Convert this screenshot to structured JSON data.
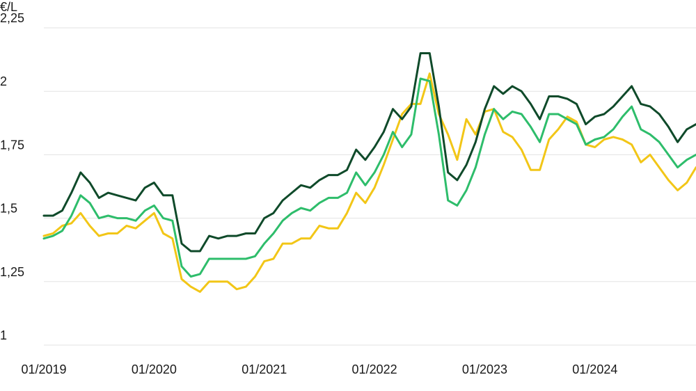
{
  "chart_data": {
    "type": "line",
    "ylabel": "€/L",
    "ylim": [
      1,
      2.25
    ],
    "y_ticks": [
      {
        "value": 2.25,
        "label": "2,25"
      },
      {
        "value": 2,
        "label": "2"
      },
      {
        "value": 1.75,
        "label": "1,75"
      },
      {
        "value": 1.5,
        "label": "1,5"
      },
      {
        "value": 1.25,
        "label": "1,25"
      },
      {
        "value": 1,
        "label": "1"
      }
    ],
    "x_start": "2019-01",
    "xlim_months": [
      0,
      71
    ],
    "x_ticks": [
      {
        "month": 0,
        "label": "01/2019"
      },
      {
        "month": 12,
        "label": "01/2020"
      },
      {
        "month": 24,
        "label": "01/2021"
      },
      {
        "month": 36,
        "label": "01/2022"
      },
      {
        "month": 48,
        "label": "01/2023"
      },
      {
        "month": 60,
        "label": "01/2024"
      }
    ],
    "grid": true,
    "series": [
      {
        "color": "#0f4a2a",
        "values": [
          1.51,
          1.51,
          1.53,
          1.6,
          1.68,
          1.64,
          1.58,
          1.6,
          1.59,
          1.58,
          1.57,
          1.62,
          1.64,
          1.59,
          1.59,
          1.4,
          1.37,
          1.37,
          1.43,
          1.42,
          1.43,
          1.43,
          1.44,
          1.44,
          1.5,
          1.52,
          1.57,
          1.6,
          1.63,
          1.62,
          1.65,
          1.67,
          1.67,
          1.69,
          1.77,
          1.73,
          1.78,
          1.84,
          1.93,
          1.89,
          1.94,
          2.15,
          2.15,
          1.94,
          1.68,
          1.65,
          1.71,
          1.8,
          1.93,
          2.02,
          1.99,
          2.02,
          2.0,
          1.95,
          1.89,
          1.98,
          1.98,
          1.97,
          1.95,
          1.87,
          1.9,
          1.91,
          1.94,
          1.98,
          2.02,
          1.95,
          1.94,
          1.91,
          1.86,
          1.8,
          1.85,
          1.87
        ]
      },
      {
        "color": "#2ebd6b",
        "values": [
          1.42,
          1.43,
          1.45,
          1.51,
          1.59,
          1.56,
          1.5,
          1.51,
          1.5,
          1.5,
          1.49,
          1.53,
          1.55,
          1.5,
          1.49,
          1.31,
          1.27,
          1.28,
          1.34,
          1.34,
          1.34,
          1.34,
          1.34,
          1.35,
          1.4,
          1.44,
          1.49,
          1.52,
          1.54,
          1.53,
          1.56,
          1.58,
          1.58,
          1.6,
          1.68,
          1.63,
          1.68,
          1.75,
          1.84,
          1.78,
          1.83,
          2.05,
          2.04,
          1.83,
          1.57,
          1.55,
          1.61,
          1.7,
          1.83,
          1.93,
          1.89,
          1.92,
          1.91,
          1.86,
          1.8,
          1.91,
          1.91,
          1.89,
          1.87,
          1.79,
          1.81,
          1.82,
          1.85,
          1.9,
          1.94,
          1.85,
          1.83,
          1.8,
          1.75,
          1.7,
          1.73,
          1.75
        ]
      },
      {
        "color": "#f2c617",
        "values": [
          1.43,
          1.44,
          1.47,
          1.48,
          1.52,
          1.47,
          1.43,
          1.44,
          1.44,
          1.47,
          1.46,
          1.49,
          1.52,
          1.44,
          1.42,
          1.26,
          1.23,
          1.21,
          1.25,
          1.25,
          1.25,
          1.22,
          1.23,
          1.27,
          1.33,
          1.34,
          1.4,
          1.4,
          1.42,
          1.42,
          1.47,
          1.46,
          1.46,
          1.52,
          1.6,
          1.56,
          1.62,
          1.71,
          1.81,
          1.91,
          1.95,
          1.95,
          2.07,
          1.91,
          1.83,
          1.73,
          1.89,
          1.83,
          1.92,
          1.93,
          1.84,
          1.82,
          1.77,
          1.69,
          1.69,
          1.81,
          1.85,
          1.9,
          1.88,
          1.79,
          1.78,
          1.81,
          1.82,
          1.81,
          1.79,
          1.72,
          1.75,
          1.7,
          1.65,
          1.61,
          1.64,
          1.7
        ]
      }
    ]
  }
}
